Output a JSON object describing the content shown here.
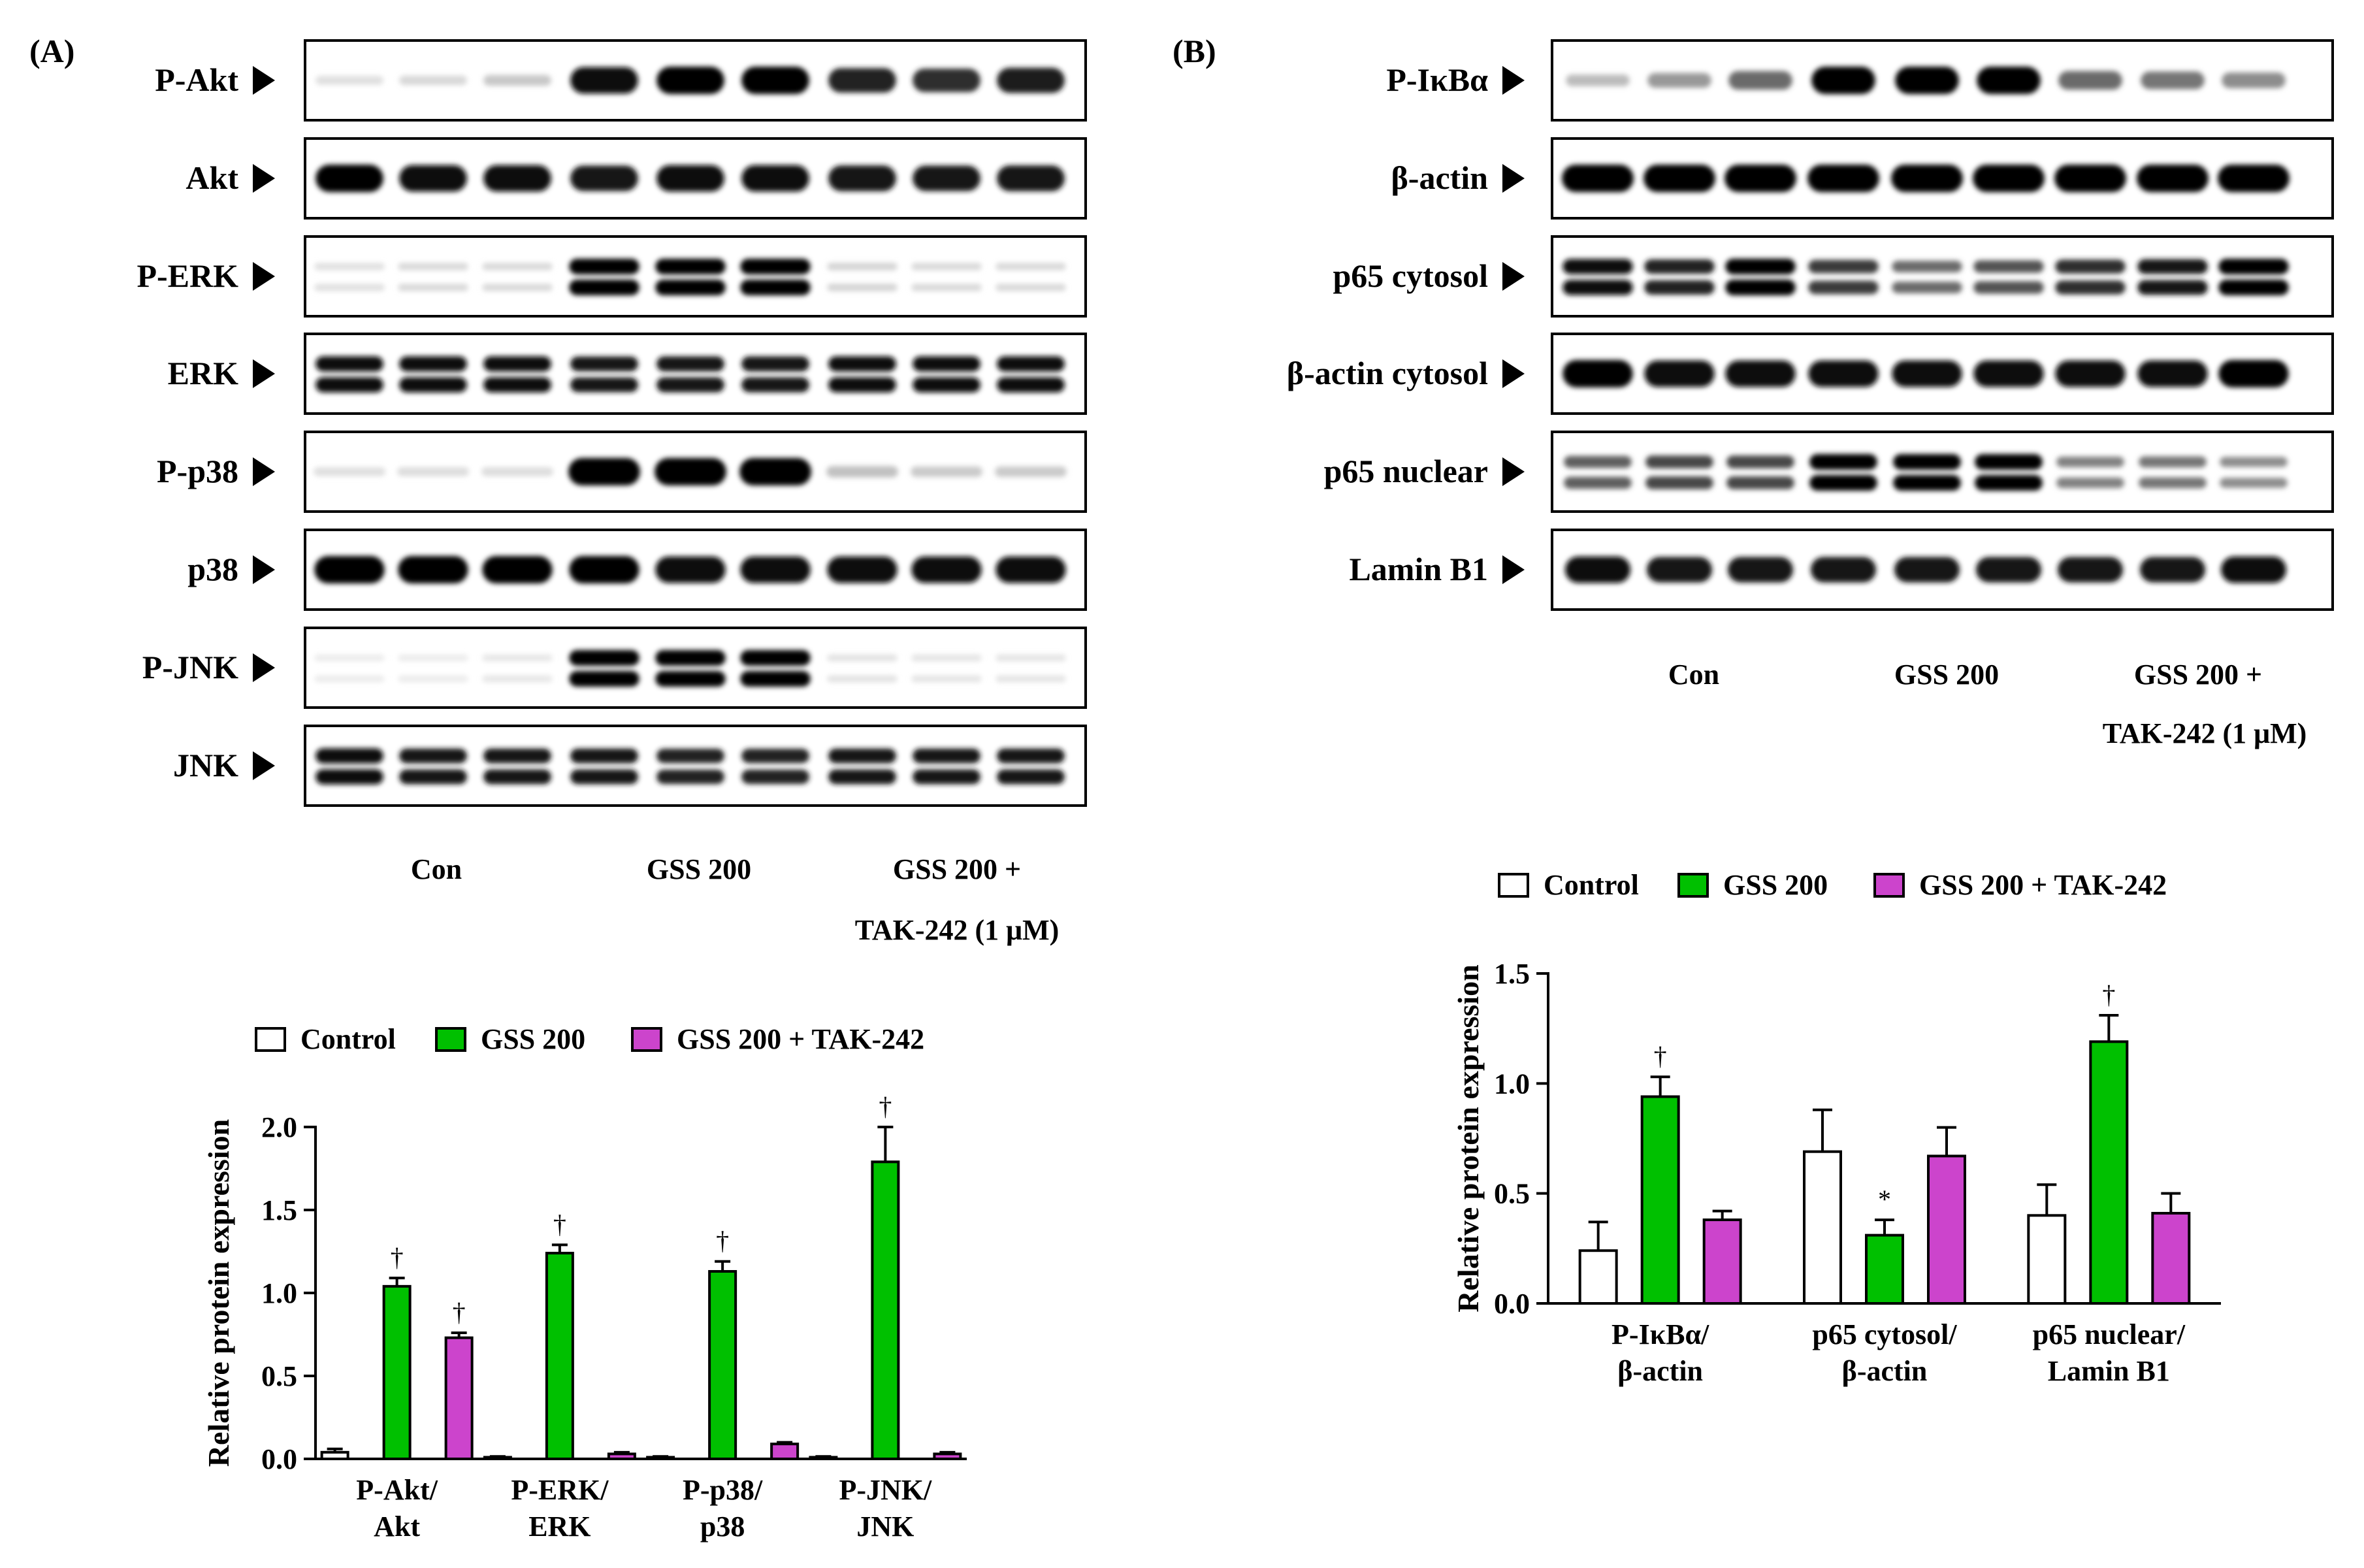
{
  "panel_a": {
    "letter": "(A)",
    "blot_rows": [
      "P-Akt",
      "Akt",
      "P-ERK",
      "ERK",
      "P-p38",
      "p38",
      "P-JNK",
      "JNK"
    ],
    "group_labels": [
      "Con",
      "GSS 200",
      "GSS 200 +",
      "TAK-242 (1 μM)"
    ]
  },
  "panel_b": {
    "letter": "(B)",
    "blot_rows": [
      "P-IκBα",
      "β-actin",
      "p65 cytosol",
      "β-actin cytosol",
      "p65 nuclear",
      "Lamin B1"
    ],
    "group_labels": [
      "Con",
      "GSS 200",
      "GSS 200 +",
      "TAK-242 (1 μM)"
    ]
  },
  "colors": {
    "control": "#ffffff",
    "gss200": "#00c000",
    "tak242": "#cc44cc"
  },
  "chart_data": [
    {
      "type": "bar",
      "panel": "A",
      "title": "",
      "xlabel": "",
      "ylabel": "Relative protein expression",
      "ylim": [
        0,
        2.0
      ],
      "yticks": [
        "0.0",
        "0.5",
        "1.0",
        "1.5",
        "2.0"
      ],
      "categories": [
        "P-Akt/ Akt",
        "P-ERK/ ERK",
        "P-p38/ p38",
        "P-JNK/ JNK"
      ],
      "category_lines": [
        [
          "P-Akt/",
          "Akt"
        ],
        [
          "P-ERK/",
          "ERK"
        ],
        [
          "P-p38/",
          "p38"
        ],
        [
          "P-JNK/",
          "JNK"
        ]
      ],
      "legend": [
        "Control",
        "GSS 200",
        "GSS 200 + TAK-242"
      ],
      "series": [
        {
          "name": "Control",
          "values": [
            0.04,
            0.01,
            0.01,
            0.01
          ],
          "errors": [
            0.02,
            0.005,
            0.005,
            0.005
          ],
          "marks": [
            "",
            "",
            "",
            ""
          ]
        },
        {
          "name": "GSS 200",
          "values": [
            1.04,
            1.24,
            1.13,
            1.79
          ],
          "errors": [
            0.05,
            0.05,
            0.06,
            0.21
          ],
          "marks": [
            "†",
            "†",
            "†",
            "†"
          ]
        },
        {
          "name": "GSS 200 + TAK-242",
          "values": [
            0.73,
            0.03,
            0.09,
            0.03
          ],
          "errors": [
            0.03,
            0.01,
            0.01,
            0.01
          ],
          "marks": [
            "†",
            "",
            "",
            ""
          ]
        }
      ]
    },
    {
      "type": "bar",
      "panel": "B",
      "title": "",
      "xlabel": "",
      "ylabel": "Relative protein expression",
      "ylim": [
        0,
        1.5
      ],
      "yticks": [
        "0.0",
        "0.5",
        "1.0",
        "1.5"
      ],
      "categories": [
        "P-IκBα/ β-actin",
        "p65 cytosol/ β-actin",
        "p65 nuclear/ Lamin B1"
      ],
      "category_lines": [
        [
          "P-IκBα/",
          "β-actin"
        ],
        [
          "p65 cytosol/",
          "β-actin"
        ],
        [
          "p65 nuclear/",
          "Lamin B1"
        ]
      ],
      "legend": [
        "Control",
        "GSS 200",
        "GSS 200 + TAK-242"
      ],
      "series": [
        {
          "name": "Control",
          "values": [
            0.24,
            0.69,
            0.4
          ],
          "errors": [
            0.13,
            0.19,
            0.14
          ],
          "marks": [
            "",
            "",
            ""
          ]
        },
        {
          "name": "GSS 200",
          "values": [
            0.94,
            0.31,
            1.19
          ],
          "errors": [
            0.09,
            0.07,
            0.12
          ],
          "marks": [
            "†",
            "*",
            "†"
          ]
        },
        {
          "name": "GSS 200 + TAK-242",
          "values": [
            0.38,
            0.67,
            0.41
          ],
          "errors": [
            0.04,
            0.13,
            0.09
          ],
          "marks": [
            "",
            "",
            ""
          ]
        }
      ]
    }
  ]
}
